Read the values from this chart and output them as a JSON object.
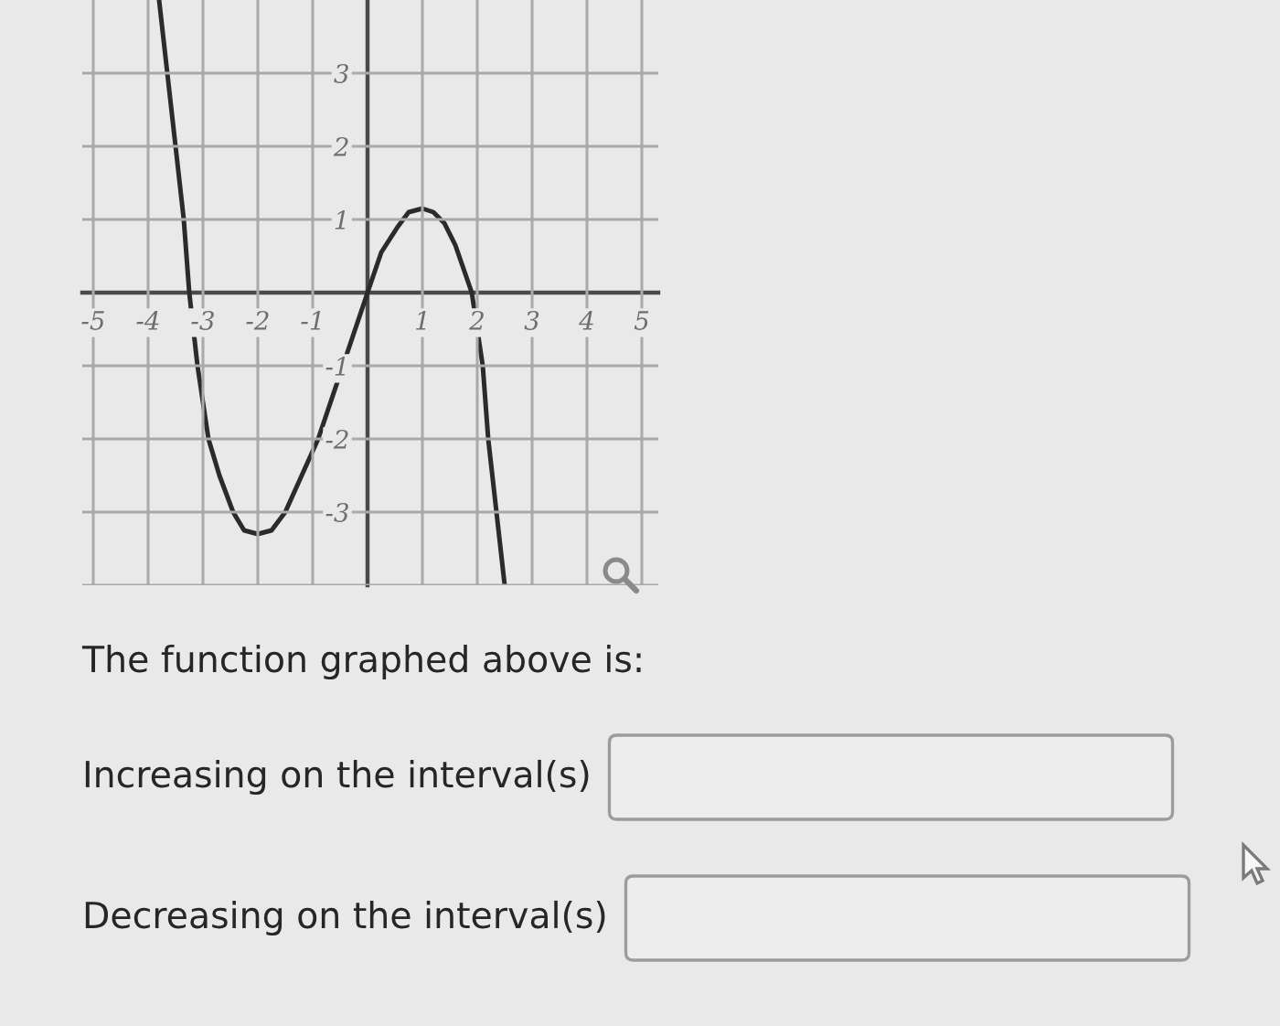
{
  "chart_data": {
    "type": "line",
    "x": [
      -3.8,
      -3.65,
      -3.5,
      -3.35,
      -3.25,
      -3.1,
      -2.9,
      -2.7,
      -2.45,
      -2.25,
      -2.0,
      -1.75,
      -1.5,
      -1.2,
      -0.9,
      -0.45,
      0.0,
      0.25,
      0.55,
      0.75,
      1.0,
      1.2,
      1.4,
      1.6,
      1.9,
      2.1,
      2.2,
      2.35,
      2.5
    ],
    "series": [
      {
        "color": "#2b2b2b",
        "values": [
          4.0,
          3.0,
          2.0,
          1.0,
          0.0,
          -1.0,
          -2.0,
          -2.5,
          -3.0,
          -3.25,
          -3.3,
          -3.25,
          -3.0,
          -2.5,
          -2.0,
          -1.0,
          0.0,
          0.55,
          0.9,
          1.1,
          1.15,
          1.1,
          0.95,
          0.65,
          0.0,
          -1.0,
          -2.0,
          -3.0,
          -4.0
        ]
      }
    ],
    "xlim": [
      -5.2,
      5.3
    ],
    "ylim": [
      -4,
      4
    ],
    "xticks": [
      -5,
      -4,
      -3,
      -2,
      -1,
      1,
      2,
      3,
      4,
      5
    ],
    "yticks": [
      {
        "value": -4,
        "label": null
      },
      -3,
      -2,
      -1,
      1,
      2,
      3
    ],
    "grid": true,
    "annotations": [
      "The function graphed above is:",
      "Increasing on the interval(s)",
      "Decreasing on the interval(s)"
    ]
  }
}
